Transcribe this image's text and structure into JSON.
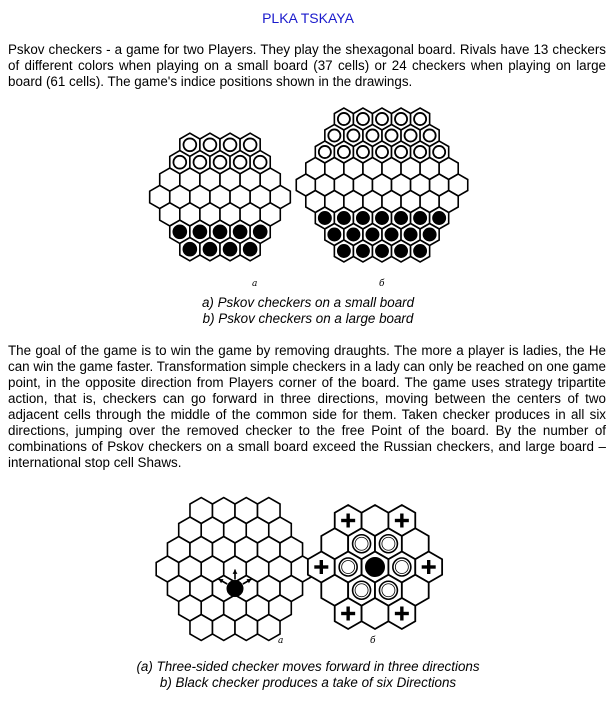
{
  "title": "PLKA TSKAYA",
  "intro": "Pskov checkers - a game for two Players. They play the shexagonal board. Rivals have 13 checkers of different colors when playing on a small board (37 cells) or 24 checkers when playing on large board (61 cells). The game's indice positions shown in the drawings.",
  "figure1": {
    "label_a": "a",
    "label_b": "б",
    "caption_a": "a) Pskov checkers on a small board",
    "caption_b": "b) Pskov checkers on a large board"
  },
  "body": "The goal of the game is to win the game by removing draughts. The more a player is ladies, the He can win the game faster. Transformation simple checkers in a lady can only be reached on one game point, in the opposite direction from Players corner of the board. The game uses strategy tripartite action, that is, checkers can go forward in three directions, moving between the centers of two adjacent cells through the middle of the common side for them. Taken checker produces in all six directions, jumping over the removed checker to the free Point of the board. By the number of combinations of Pskov checkers on a small board exceed the Russian checkers, and large board – international stop cell Shaws.",
  "figure2": {
    "label_a": "a",
    "label_b": "б",
    "caption_a": "(a) Three-sided checker moves forward in three directions",
    "caption_b": "b) Black checker produces a take of six Directions"
  }
}
